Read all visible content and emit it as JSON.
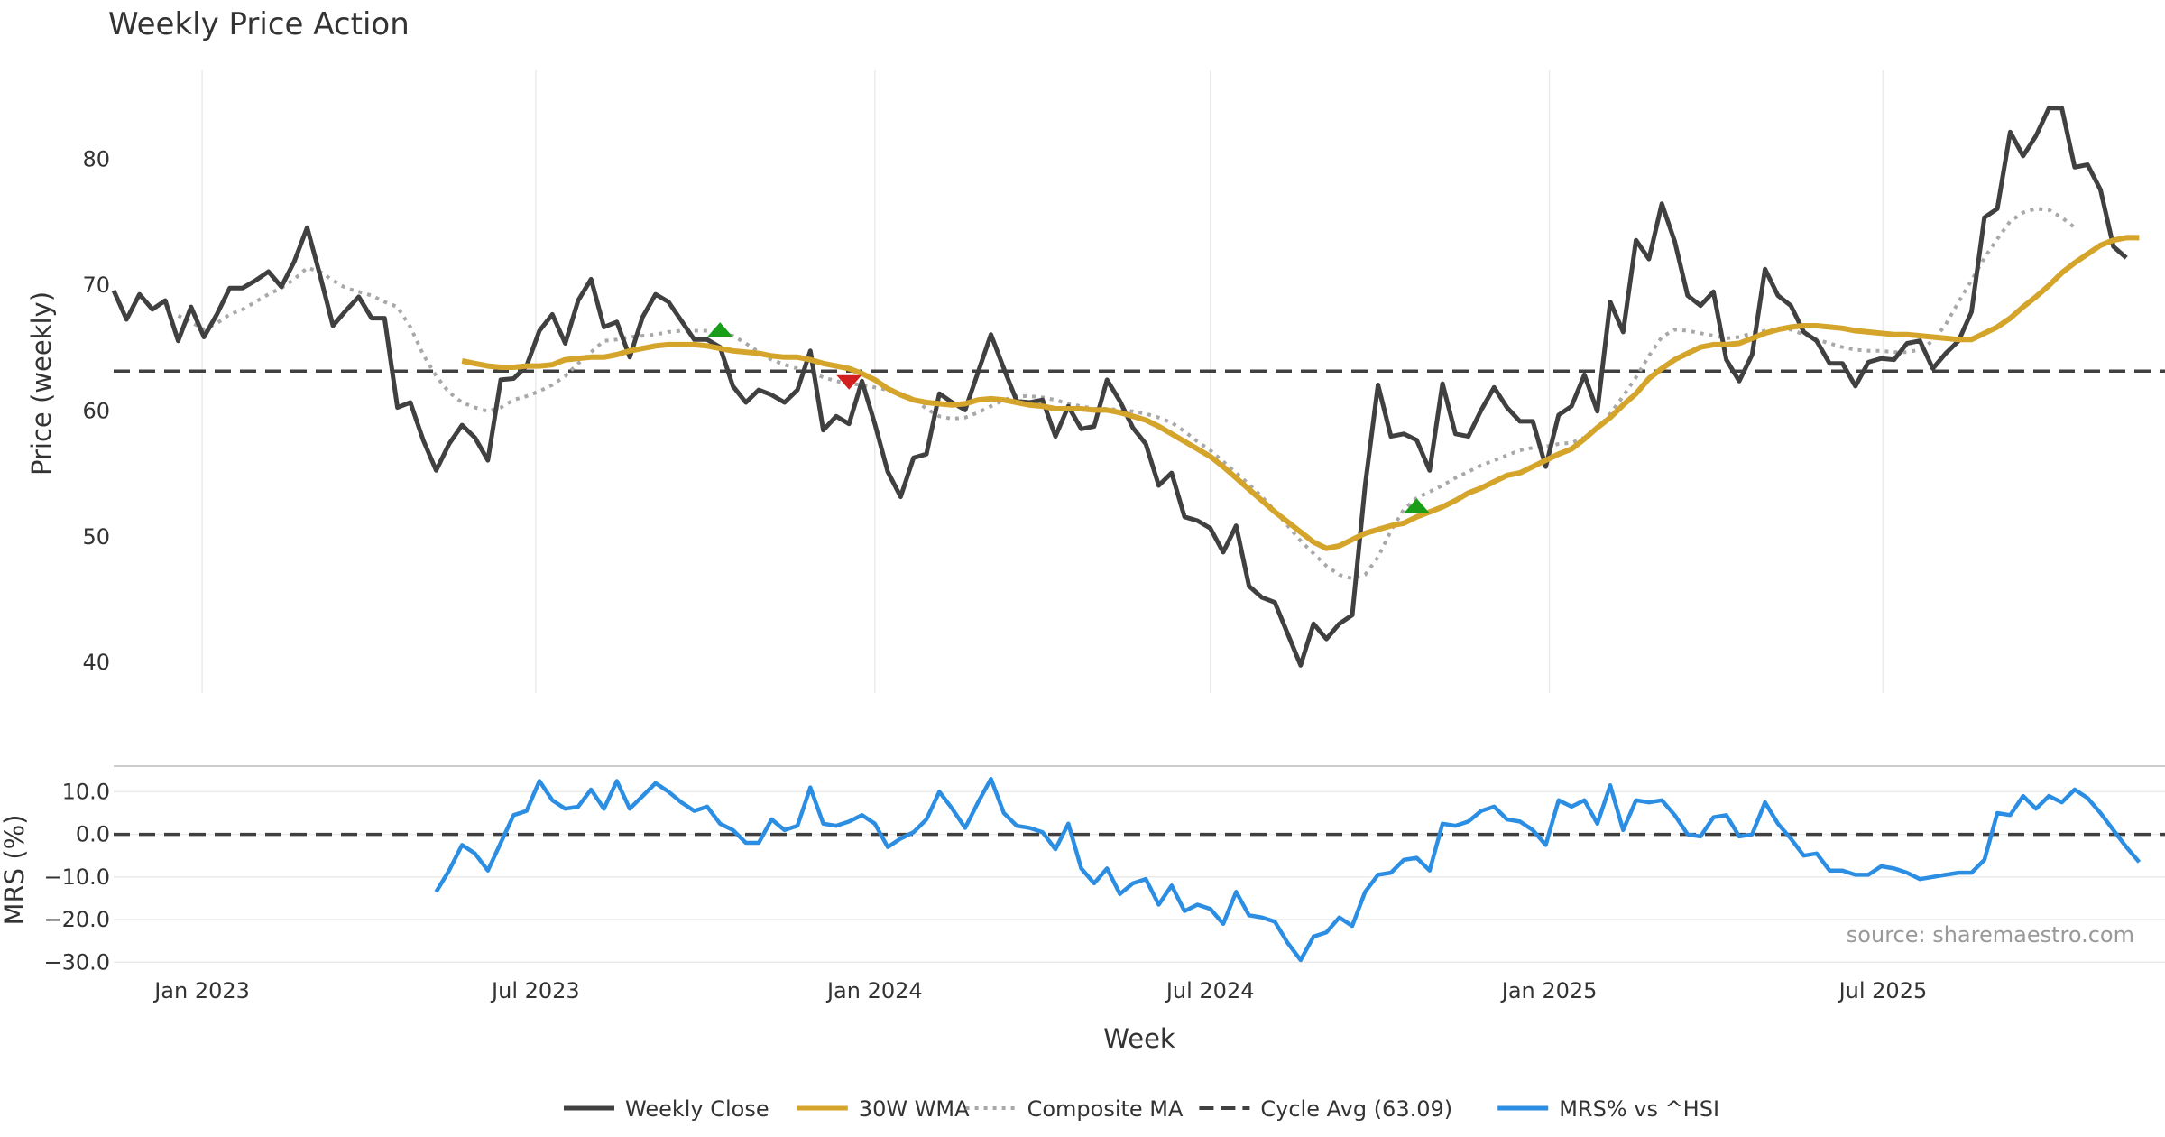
{
  "chart_data": {
    "type": "line",
    "title": "Weekly Price Action",
    "xlabel": "Week",
    "ylabel_top": "Price (weekly)",
    "ylabel_bottom": "MRS (%)",
    "x_range": [
      "2022-11-14",
      "2025-12-01"
    ],
    "x_ticks": [
      {
        "date": "2023-01-01",
        "label": "Jan 2023"
      },
      {
        "date": "2023-07-01",
        "label": "Jul 2023"
      },
      {
        "date": "2024-01-01",
        "label": "Jan 2024"
      },
      {
        "date": "2024-07-01",
        "label": "Jul 2024"
      },
      {
        "date": "2025-01-01",
        "label": "Jan 2025"
      },
      {
        "date": "2025-07-01",
        "label": "Jul 2025"
      }
    ],
    "top_panel": {
      "ylim": [
        37.5,
        87
      ],
      "y_ticks": [
        40,
        50,
        60,
        70,
        80
      ],
      "grid": "x-only"
    },
    "bottom_panel": {
      "ylim": [
        -31,
        16
      ],
      "y_ticks": [
        -30,
        -20,
        -10,
        0,
        10
      ],
      "y_tick_labels": [
        "−30.0",
        "−20.0",
        "−10.0",
        "0.0",
        "10.0"
      ]
    },
    "series": [
      {
        "name": "Weekly Close",
        "color": "#404040",
        "style": "solid",
        "panel": "top",
        "start": "2022-11-14",
        "values": [
          69.5,
          67.2,
          69.2,
          68.0,
          68.7,
          65.5,
          68.2,
          65.8,
          67.6,
          69.7,
          69.7,
          70.3,
          71.0,
          69.8,
          71.8,
          74.5,
          70.7,
          66.7,
          67.9,
          69.0,
          67.3,
          67.3,
          60.2,
          60.6,
          57.6,
          55.2,
          57.3,
          58.8,
          57.8,
          56.0,
          62.4,
          62.5,
          63.5,
          66.3,
          67.6,
          65.3,
          68.7,
          70.4,
          66.6,
          67.0,
          64.2,
          67.4,
          69.2,
          68.6,
          67.1,
          65.6,
          65.6,
          65.0,
          61.9,
          60.6,
          61.6,
          61.2,
          60.6,
          61.6,
          64.7,
          58.4,
          59.5,
          58.9,
          62.3,
          58.9,
          55.1,
          53.1,
          56.2,
          56.5,
          61.3,
          60.6,
          60.0,
          63.0,
          66.0,
          63.3,
          60.7,
          60.6,
          60.8,
          57.9,
          60.3,
          58.5,
          58.7,
          62.4,
          60.7,
          58.6,
          57.3,
          54.0,
          55.0,
          51.5,
          51.2,
          50.6,
          48.7,
          50.8,
          46.0,
          45.1,
          44.7,
          42.2,
          39.7,
          43.0,
          41.8,
          43.0,
          43.7,
          54.0,
          62.0,
          57.9,
          58.1,
          57.6,
          55.2,
          62.1,
          58.1,
          57.9,
          60.0,
          61.8,
          60.2,
          59.1,
          59.1,
          55.5,
          59.6,
          60.3,
          62.8,
          59.9,
          68.6,
          66.2,
          73.5,
          72.0,
          76.4,
          73.4,
          69.1,
          68.3,
          69.4,
          64.0,
          62.3,
          64.4,
          71.2,
          69.1,
          68.3,
          66.2,
          65.5,
          63.7,
          63.7,
          61.9,
          63.8,
          64.1,
          64.0,
          65.3,
          65.5,
          63.3,
          64.5,
          65.5,
          67.8,
          75.3,
          76.0,
          82.1,
          80.2,
          81.8,
          84.0,
          84.0,
          79.3,
          79.5,
          77.5,
          73.0,
          72.1
        ]
      },
      {
        "name": "30W WMA",
        "color": "#d4a52a",
        "style": "solid",
        "panel": "top",
        "start": "2023-05-22",
        "values": [
          63.9,
          63.7,
          63.5,
          63.4,
          63.4,
          63.5,
          63.5,
          63.6,
          64.0,
          64.1,
          64.2,
          64.2,
          64.4,
          64.7,
          64.9,
          65.1,
          65.2,
          65.2,
          65.2,
          65.1,
          64.9,
          64.7,
          64.6,
          64.5,
          64.3,
          64.2,
          64.2,
          64.0,
          63.7,
          63.5,
          63.3,
          62.9,
          62.4,
          61.7,
          61.2,
          60.8,
          60.6,
          60.5,
          60.4,
          60.5,
          60.8,
          60.9,
          60.8,
          60.6,
          60.4,
          60.3,
          60.1,
          60.1,
          60.1,
          60.0,
          60.0,
          59.8,
          59.5,
          59.2,
          58.7,
          58.1,
          57.5,
          56.9,
          56.3,
          55.5,
          54.6,
          53.7,
          52.8,
          51.9,
          51.1,
          50.3,
          49.5,
          49.0,
          49.2,
          49.7,
          50.2,
          50.5,
          50.8,
          51.0,
          51.5,
          51.9,
          52.3,
          52.8,
          53.4,
          53.8,
          54.3,
          54.8,
          55.0,
          55.5,
          56.0,
          56.5,
          56.9,
          57.7,
          58.6,
          59.4,
          60.4,
          61.3,
          62.5,
          63.3,
          64.0,
          64.5,
          65.0,
          65.2,
          65.2,
          65.3,
          65.7,
          66.1,
          66.4,
          66.6,
          66.7,
          66.7,
          66.6,
          66.5,
          66.3,
          66.2,
          66.1,
          66.0,
          66.0,
          65.9,
          65.8,
          65.7,
          65.6,
          65.6,
          66.1,
          66.6,
          67.3,
          68.2,
          69.0,
          69.9,
          70.9,
          71.7,
          72.4,
          73.1,
          73.5,
          73.7,
          73.7
        ]
      },
      {
        "name": "Composite MA",
        "color": "#a8a8a8",
        "style": "dotted",
        "panel": "top",
        "start": "2022-12-19",
        "values": [
          67.5,
          67.0,
          66.4,
          66.9,
          67.6,
          68.0,
          68.6,
          69.2,
          69.7,
          70.4,
          71.3,
          71.0,
          70.3,
          69.7,
          69.4,
          69.1,
          68.6,
          68.2,
          66.6,
          64.4,
          62.7,
          61.4,
          60.6,
          60.2,
          59.9,
          60.2,
          60.8,
          61.1,
          61.5,
          62.0,
          62.7,
          63.7,
          64.6,
          65.5,
          65.6,
          65.8,
          65.9,
          66.0,
          66.2,
          66.3,
          66.3,
          66.3,
          66.1,
          65.9,
          65.3,
          64.6,
          64.0,
          63.6,
          63.3,
          63.0,
          62.6,
          62.3,
          62.1,
          62.0,
          61.8,
          61.6,
          61.3,
          60.9,
          60.1,
          59.5,
          59.3,
          59.4,
          59.8,
          60.3,
          60.8,
          61.1,
          61.1,
          61.0,
          60.8,
          60.5,
          60.3,
          60.1,
          60.1,
          60.0,
          59.9,
          59.7,
          59.4,
          59.0,
          58.3,
          57.5,
          56.8,
          55.9,
          55.0,
          54.1,
          53.1,
          52.0,
          50.8,
          49.6,
          48.6,
          47.6,
          46.9,
          46.6,
          46.9,
          48.3,
          50.4,
          52.1,
          53.0,
          53.5,
          54.0,
          54.6,
          55.1,
          55.6,
          56.0,
          56.4,
          56.8,
          57.0,
          57.1,
          57.3,
          57.4,
          57.8,
          58.5,
          59.7,
          61.1,
          62.6,
          64.3,
          65.8,
          66.4,
          66.3,
          66.1,
          65.9,
          65.7,
          65.8,
          66.1,
          66.3,
          66.4,
          66.4,
          66.0,
          65.6,
          65.3,
          65.0,
          64.8,
          64.7,
          64.7,
          64.6,
          64.6,
          64.8,
          65.5,
          66.8,
          68.6,
          70.3,
          72.1,
          73.6,
          75.0,
          75.7,
          76.0,
          75.9,
          75.3,
          74.5
        ]
      },
      {
        "name": "Cycle Avg (63.09)",
        "color": "#404040",
        "style": "dashed",
        "panel": "top",
        "value": 63.09
      },
      {
        "name": "MRS% vs ^HSI",
        "color": "#2b8ee3",
        "style": "solid",
        "panel": "bottom",
        "start": "2023-05-08",
        "values": [
          -13.5,
          -8.5,
          -2.5,
          -4.5,
          -8.5,
          -2.0,
          4.5,
          5.5,
          12.5,
          8.0,
          6.0,
          6.5,
          10.5,
          6.0,
          12.5,
          6.0,
          9.0,
          12.0,
          10.0,
          7.5,
          5.5,
          6.5,
          2.5,
          1.0,
          -2.0,
          -2.0,
          3.5,
          1.0,
          2.0,
          11.0,
          2.5,
          2.0,
          3.0,
          4.5,
          2.5,
          -3.0,
          -1.0,
          0.5,
          3.5,
          10.0,
          6.0,
          1.5,
          7.5,
          13.0,
          5.0,
          2.0,
          1.5,
          0.5,
          -3.5,
          2.5,
          -8.0,
          -11.5,
          -8.0,
          -14.0,
          -11.5,
          -10.5,
          -16.5,
          -12.0,
          -18.0,
          -16.5,
          -17.5,
          -21.0,
          -13.5,
          -19.0,
          -19.5,
          -20.5,
          -25.5,
          -29.5,
          -24.0,
          -23.0,
          -19.5,
          -21.5,
          -13.5,
          -9.5,
          -9.0,
          -6.0,
          -5.5,
          -8.5,
          2.5,
          2.0,
          3.0,
          5.5,
          6.5,
          3.5,
          3.0,
          1.0,
          -2.5,
          8.0,
          6.5,
          8.0,
          2.5,
          11.5,
          1.0,
          8.0,
          7.5,
          8.0,
          4.5,
          0.0,
          -0.5,
          4.0,
          4.5,
          -0.5,
          0.0,
          7.5,
          2.5,
          -1.0,
          -5.0,
          -4.5,
          -8.5,
          -8.5,
          -9.5,
          -9.5,
          -7.5,
          -8.0,
          -9.0,
          -10.5,
          -10.0,
          -9.5,
          -9.0,
          -9.0,
          -6.0,
          5.0,
          4.5,
          9.0,
          6.0,
          9.0,
          7.5,
          10.5,
          8.5,
          5.0,
          1.0,
          -3.0,
          -6.5
        ]
      },
      {
        "name": "MRS zero line",
        "color": "#404040",
        "style": "dashed",
        "panel": "bottom",
        "value": 0
      }
    ],
    "markers": [
      {
        "type": "buy",
        "shape": "triangle-up",
        "color": "#1a9e1a",
        "date": "2023-10-09",
        "y": 66.4
      },
      {
        "type": "sell",
        "shape": "triangle-down",
        "color": "#d21f1f",
        "date": "2023-12-18",
        "y": 62.2
      },
      {
        "type": "buy",
        "shape": "triangle-up",
        "color": "#1a9e1a",
        "date": "2024-10-21",
        "y": 52.4
      }
    ],
    "legend": {
      "placement": "bottom-center",
      "entries": [
        "Weekly Close",
        "30W WMA",
        "Composite MA",
        "Cycle Avg (63.09)",
        "MRS% vs ^HSI"
      ]
    },
    "source_note": "source: sharemaestro.com"
  }
}
